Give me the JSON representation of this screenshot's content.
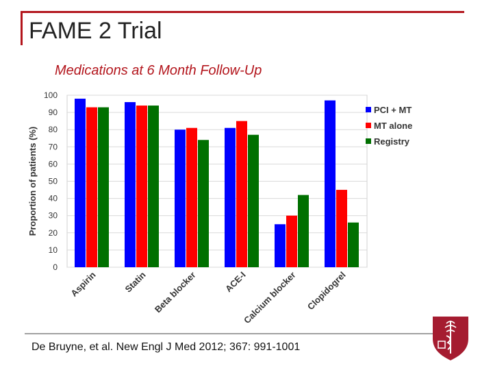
{
  "slide": {
    "title": "FAME 2 Trial",
    "subtitle": "Medications at 6 Month Follow-Up",
    "citation": "De Bruyne, et al. New Engl J Med 2012; 367: 991-1001",
    "accent_color": "#b3151c"
  },
  "chart_data": {
    "type": "bar",
    "title": "",
    "xlabel": "",
    "ylabel": "Proportion of patients (%)",
    "ylim": [
      0,
      100
    ],
    "yticks": [
      0,
      10,
      20,
      30,
      40,
      50,
      60,
      70,
      80,
      90,
      100
    ],
    "grid": true,
    "legend_position": "right",
    "categories": [
      "Aspirin",
      "Statin",
      "Beta blocker",
      "ACE-I",
      "Calcium blocker",
      "Clopidogrel"
    ],
    "series": [
      {
        "name": "PCI + MT",
        "color": "#0000ff",
        "values": [
          98,
          96,
          80,
          81,
          25,
          97
        ]
      },
      {
        "name": "MT alone",
        "color": "#ff0000",
        "values": [
          93,
          94,
          81,
          85,
          30,
          45
        ]
      },
      {
        "name": "Registry",
        "color": "#007000",
        "values": [
          93,
          94,
          74,
          77,
          42,
          26
        ]
      }
    ]
  }
}
